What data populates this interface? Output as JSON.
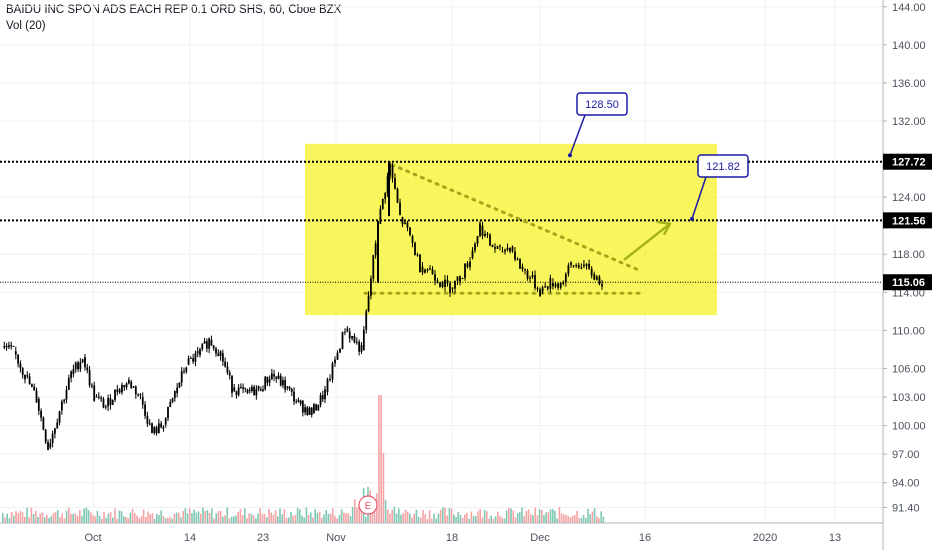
{
  "header": {
    "title": "BAIDU INC SPON ADS EACH REP 0.1 ORD SHS, 60, Cboe BZX",
    "volume_label": "Vol (20)"
  },
  "colors": {
    "background": "#ffffff",
    "grid": "#eef0f3",
    "candle": "#000000",
    "zone_fill": "#f7f31f",
    "zone_opacity": "0.72",
    "triangle_dots": "#a6a61e",
    "arrow": "#a6b21a",
    "callout_border": "#1a1aa6",
    "price_tag_bg": "#000000",
    "price_tag_text": "#ffffff",
    "vol_up": "#7fc8b4",
    "vol_down": "#f4a4a4",
    "earnings": "#e8556a"
  },
  "earnings_marker": {
    "label": "E"
  },
  "chart_data": {
    "type": "candlestick",
    "title": "BAIDU INC SPON ADS EACH REP 0.1 ORD SHS, 60, Cboe BZX",
    "ylim": [
      90.5,
      144.5
    ],
    "y_ticks": [
      "144.00",
      "140.00",
      "136.00",
      "132.00",
      "124.00",
      "118.00",
      "114.00",
      "110.00",
      "106.00",
      "103.00",
      "100.00",
      "97.00",
      "94.00",
      "91.40"
    ],
    "x_ticks": [
      "Oct",
      "14",
      "23",
      "Nov",
      "18",
      "Dec",
      "16",
      "2020",
      "13"
    ],
    "x_tick_index": [
      0.1,
      0.43,
      0.78,
      1.02,
      1.38,
      1.78,
      2.14,
      2.58,
      2.92
    ],
    "horizontal_levels": [
      {
        "label": "127.72",
        "value": 127.72,
        "style": "dashed-bold"
      },
      {
        "label": "121.56",
        "value": 121.56,
        "style": "dashed-bold"
      },
      {
        "label": "115.06",
        "value": 115.06,
        "style": "dotted-thin"
      }
    ],
    "callouts": [
      {
        "label": "128.50",
        "value": 128.5
      },
      {
        "label": "121.82",
        "value": 121.82
      }
    ],
    "zone": {
      "from_date": "Nov 4",
      "to_date": "Dec 20",
      "top": 129.6,
      "bottom": 111.6
    },
    "triangle_upper": [
      {
        "date": "Nov 6",
        "value": 127.4
      },
      {
        "date": "Dec 13",
        "value": 116.2
      }
    ],
    "triangle_lower": [
      {
        "date": "Nov 4",
        "value": 113.9
      },
      {
        "date": "Dec 13",
        "value": 113.9
      }
    ],
    "projection_arrow": [
      {
        "date": "Dec 13",
        "value": 117.4
      },
      {
        "date": "Dec 18",
        "value": 121.2
      }
    ],
    "price_series": [
      {
        "date": "Sep 25",
        "value": 108.2
      },
      {
        "date": "Sep 26",
        "value": 107.8
      },
      {
        "date": "Sep 27",
        "value": 105.3
      },
      {
        "date": "Sep 30",
        "value": 102.8
      },
      {
        "date": "Oct 1",
        "value": 97.7
      },
      {
        "date": "Oct 2",
        "value": 101.6
      },
      {
        "date": "Oct 3",
        "value": 105.4
      },
      {
        "date": "Oct 4",
        "value": 107.2
      },
      {
        "date": "Oct 7",
        "value": 103.0
      },
      {
        "date": "Oct 8",
        "value": 102.0
      },
      {
        "date": "Oct 9",
        "value": 103.8
      },
      {
        "date": "Oct 10",
        "value": 104.6
      },
      {
        "date": "Oct 11",
        "value": 103.0
      },
      {
        "date": "Oct 14",
        "value": 99.2
      },
      {
        "date": "Oct 15",
        "value": 100.1
      },
      {
        "date": "Oct 16",
        "value": 103.4
      },
      {
        "date": "Oct 17",
        "value": 106.4
      },
      {
        "date": "Oct 18",
        "value": 107.4
      },
      {
        "date": "Oct 21",
        "value": 109.0
      },
      {
        "date": "Oct 22",
        "value": 107.6
      },
      {
        "date": "Oct 23",
        "value": 104.0
      },
      {
        "date": "Oct 24",
        "value": 103.4
      },
      {
        "date": "Oct 25",
        "value": 103.8
      },
      {
        "date": "Oct 28",
        "value": 105.4
      },
      {
        "date": "Oct 29",
        "value": 104.1
      },
      {
        "date": "Oct 30",
        "value": 102.3
      },
      {
        "date": "Oct 31",
        "value": 101.3
      },
      {
        "date": "Nov 1",
        "value": 103.5
      },
      {
        "date": "Nov 4",
        "value": 110.2
      },
      {
        "date": "Nov 5",
        "value": 107.9
      },
      {
        "date": "Nov 6",
        "value": 121.2
      },
      {
        "date": "Nov 7",
        "value": 127.3
      },
      {
        "date": "Nov 8",
        "value": 121.9
      },
      {
        "date": "Nov 11",
        "value": 119.9
      },
      {
        "date": "Nov 12",
        "value": 116.7
      },
      {
        "date": "Nov 13",
        "value": 116.4
      },
      {
        "date": "Nov 14",
        "value": 115.1
      },
      {
        "date": "Nov 15",
        "value": 114.5
      },
      {
        "date": "Nov 18",
        "value": 115.5
      },
      {
        "date": "Nov 19",
        "value": 117.6
      },
      {
        "date": "Nov 20",
        "value": 121.0
      },
      {
        "date": "Nov 21",
        "value": 119.0
      },
      {
        "date": "Nov 22",
        "value": 118.3
      },
      {
        "date": "Nov 25",
        "value": 118.8
      },
      {
        "date": "Nov 26",
        "value": 116.7
      },
      {
        "date": "Nov 27",
        "value": 115.6
      },
      {
        "date": "Dec 2",
        "value": 114.1
      },
      {
        "date": "Dec 3",
        "value": 115.0
      },
      {
        "date": "Dec 4",
        "value": 114.9
      },
      {
        "date": "Dec 5",
        "value": 116.8
      },
      {
        "date": "Dec 6",
        "value": 116.9
      },
      {
        "date": "Dec 9",
        "value": 115.9
      },
      {
        "date": "Dec 10",
        "value": 115.06
      }
    ]
  }
}
